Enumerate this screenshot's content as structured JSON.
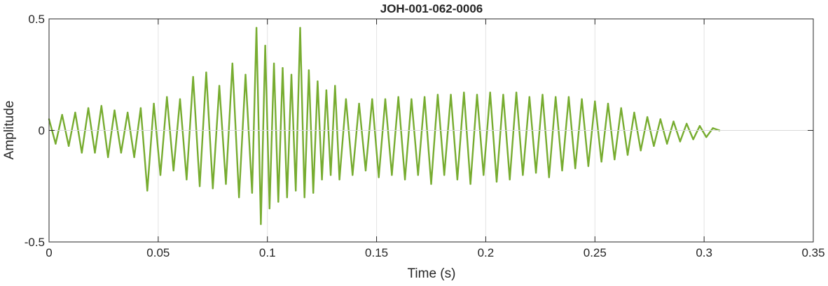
{
  "chart_data": {
    "type": "line",
    "title": "JOH-001-062-0006",
    "xlabel": "Time (s)",
    "ylabel": "Amplitude",
    "xlim": [
      0,
      0.35
    ],
    "ylim": [
      -0.5,
      0.5
    ],
    "xticks": [
      0,
      0.05,
      0.1,
      0.15,
      0.2,
      0.25,
      0.3,
      0.35
    ],
    "xtick_labels": [
      "0",
      "0.05",
      "0.1",
      "0.15",
      "0.2",
      "0.25",
      "0.3",
      "0.35"
    ],
    "yticks": [
      -0.5,
      0,
      0.5
    ],
    "ytick_labels": [
      "-0.5",
      "0",
      "0.5"
    ],
    "grid": true,
    "series_color": "#77ac30",
    "series": [
      {
        "x": [
          0,
          0.003,
          0.006,
          0.009,
          0.012,
          0.015,
          0.018,
          0.021,
          0.024,
          0.027,
          0.03,
          0.033,
          0.036,
          0.039,
          0.042,
          0.045,
          0.048,
          0.051,
          0.054,
          0.057,
          0.06,
          0.063,
          0.066,
          0.069,
          0.072,
          0.075,
          0.078,
          0.081,
          0.084,
          0.087,
          0.09,
          0.093,
          0.095,
          0.097,
          0.099,
          0.101,
          0.103,
          0.105,
          0.107,
          0.109,
          0.111,
          0.113,
          0.115,
          0.117,
          0.119,
          0.121,
          0.123,
          0.125,
          0.127,
          0.129,
          0.131,
          0.133,
          0.136,
          0.139,
          0.142,
          0.145,
          0.148,
          0.151,
          0.154,
          0.157,
          0.16,
          0.163,
          0.166,
          0.169,
          0.172,
          0.175,
          0.178,
          0.181,
          0.184,
          0.187,
          0.19,
          0.193,
          0.196,
          0.199,
          0.202,
          0.205,
          0.208,
          0.211,
          0.214,
          0.217,
          0.22,
          0.223,
          0.226,
          0.229,
          0.232,
          0.235,
          0.238,
          0.241,
          0.244,
          0.247,
          0.25,
          0.253,
          0.256,
          0.259,
          0.262,
          0.265,
          0.268,
          0.271,
          0.274,
          0.277,
          0.28,
          0.283,
          0.286,
          0.289,
          0.292,
          0.295,
          0.298,
          0.301,
          0.304,
          0.307
        ],
        "y": [
          0.05,
          -0.06,
          0.07,
          -0.07,
          0.08,
          -0.1,
          0.1,
          -0.1,
          0.11,
          -0.12,
          0.09,
          -0.1,
          0.08,
          -0.12,
          0.1,
          -0.27,
          0.12,
          -0.2,
          0.15,
          -0.18,
          0.14,
          -0.22,
          0.24,
          -0.25,
          0.26,
          -0.26,
          0.2,
          -0.24,
          0.3,
          -0.3,
          0.25,
          -0.28,
          0.46,
          -0.42,
          0.38,
          -0.35,
          0.3,
          -0.32,
          0.28,
          -0.3,
          0.25,
          -0.27,
          0.46,
          -0.3,
          0.27,
          -0.28,
          0.22,
          -0.22,
          0.18,
          -0.2,
          0.2,
          -0.22,
          0.14,
          -0.2,
          0.12,
          -0.18,
          0.14,
          -0.21,
          0.14,
          -0.2,
          0.15,
          -0.22,
          0.14,
          -0.2,
          0.15,
          -0.24,
          0.16,
          -0.2,
          0.16,
          -0.22,
          0.17,
          -0.24,
          0.16,
          -0.2,
          0.17,
          -0.23,
          0.16,
          -0.22,
          0.17,
          -0.2,
          0.15,
          -0.19,
          0.16,
          -0.21,
          0.15,
          -0.18,
          0.15,
          -0.17,
          0.14,
          -0.16,
          0.13,
          -0.14,
          0.12,
          -0.13,
          0.1,
          -0.11,
          0.08,
          -0.09,
          0.06,
          -0.07,
          0.05,
          -0.06,
          0.04,
          -0.05,
          0.03,
          -0.04,
          0.02,
          -0.03,
          0.01,
          0.0
        ]
      }
    ]
  }
}
